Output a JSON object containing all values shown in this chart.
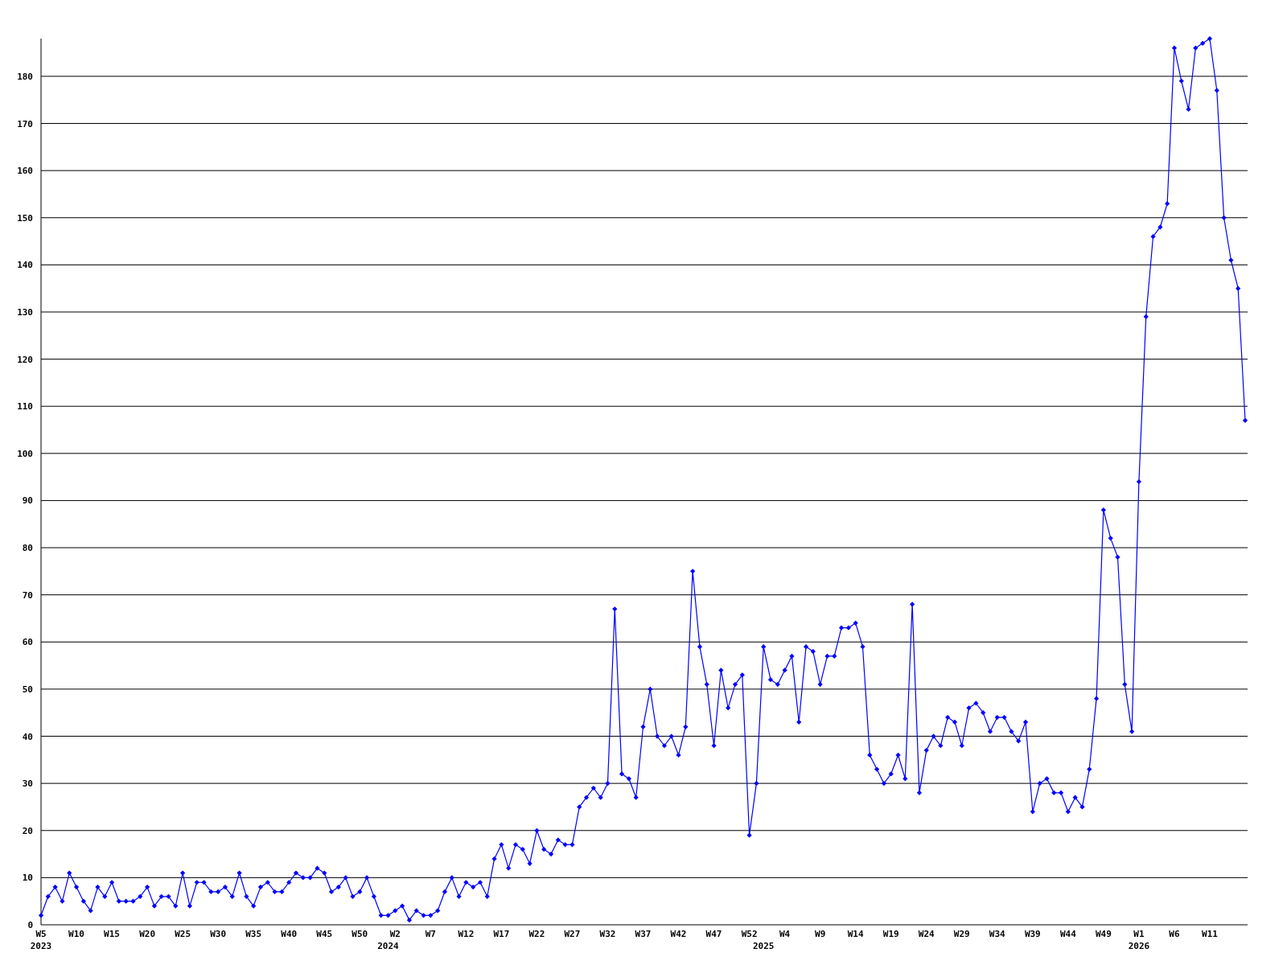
{
  "chart_data": {
    "type": "line",
    "categories": [
      "W5\n2023",
      null,
      null,
      null,
      null,
      "W10",
      null,
      null,
      null,
      null,
      "W15",
      null,
      null,
      null,
      null,
      "W20",
      null,
      null,
      null,
      null,
      "W25",
      null,
      null,
      null,
      null,
      "W30",
      null,
      null,
      null,
      null,
      "W35",
      null,
      null,
      null,
      null,
      "W40",
      null,
      null,
      null,
      null,
      "W45",
      null,
      null,
      null,
      null,
      "W50",
      null,
      null,
      null,
      "\n2024",
      "W2",
      null,
      null,
      null,
      null,
      "W7",
      null,
      null,
      null,
      null,
      "W12",
      null,
      null,
      null,
      null,
      "W17",
      null,
      null,
      null,
      null,
      "W22",
      null,
      null,
      null,
      null,
      "W27",
      null,
      null,
      null,
      null,
      "W32",
      null,
      null,
      null,
      null,
      "W37",
      null,
      null,
      null,
      null,
      "W42",
      null,
      null,
      null,
      null,
      "W47",
      null,
      null,
      null,
      null,
      "W52",
      null,
      "\n2025",
      null,
      null,
      "W4",
      null,
      null,
      null,
      null,
      "W9",
      null,
      null,
      null,
      null,
      "W14",
      null,
      null,
      null,
      null,
      "W19",
      null,
      null,
      null,
      null,
      "W24",
      null,
      null,
      null,
      null,
      "W29",
      null,
      null,
      null,
      null,
      "W34",
      null,
      null,
      null,
      null,
      "W39",
      null,
      null,
      null,
      null,
      "W44",
      null,
      null,
      null,
      null,
      "W49",
      null,
      null,
      null,
      null,
      "W1\n2026",
      null,
      null,
      null,
      null,
      "W6",
      null,
      null,
      null,
      null,
      "W11",
      null,
      null,
      null,
      null,
      null
    ],
    "series": [
      {
        "color": "#0000ff",
        "values": [
          2,
          6,
          8,
          5,
          11,
          8,
          5,
          3,
          8,
          6,
          9,
          5,
          5,
          5,
          6,
          8,
          4,
          6,
          6,
          4,
          11,
          4,
          9,
          9,
          7,
          7,
          8,
          6,
          11,
          6,
          4,
          8,
          9,
          7,
          7,
          9,
          11,
          10,
          10,
          12,
          11,
          7,
          8,
          10,
          6,
          7,
          10,
          6,
          2,
          2,
          3,
          4,
          1,
          3,
          2,
          2,
          3,
          7,
          10,
          6,
          9,
          8,
          9,
          6,
          14,
          17,
          12,
          17,
          16,
          13,
          20,
          16,
          15,
          18,
          17,
          17,
          25,
          27,
          29,
          27,
          30,
          67,
          32,
          31,
          27,
          42,
          50,
          40,
          38,
          40,
          36,
          42,
          75,
          59,
          51,
          38,
          54,
          46,
          51,
          53,
          19,
          30,
          59,
          52,
          51,
          54,
          57,
          43,
          59,
          58,
          51,
          57,
          57,
          63,
          63,
          64,
          59,
          36,
          33,
          30,
          32,
          36,
          31,
          68,
          28,
          37,
          40,
          38,
          44,
          43,
          38,
          46,
          47,
          45,
          41,
          44,
          44,
          41,
          39,
          43,
          24,
          30,
          31,
          28,
          28,
          24,
          27,
          25,
          33,
          48,
          88,
          82,
          78,
          51,
          41,
          94,
          129,
          146,
          148,
          153,
          186,
          179,
          173,
          186,
          187,
          188,
          177,
          150,
          141,
          135,
          107
        ]
      }
    ],
    "ylim": [
      0,
      188
    ],
    "yticks": [
      0,
      10,
      20,
      30,
      40,
      50,
      60,
      70,
      80,
      90,
      100,
      110,
      120,
      130,
      140,
      150,
      160,
      170,
      180
    ],
    "grid": "y",
    "marker": "diamond",
    "line_style": "solid"
  }
}
